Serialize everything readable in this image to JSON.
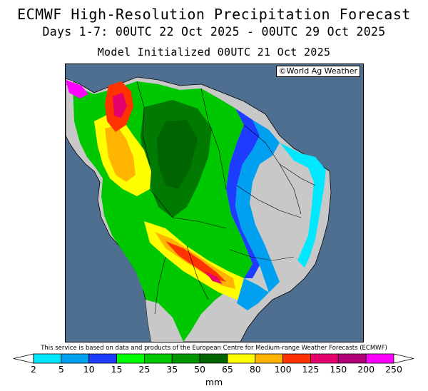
{
  "header": {
    "title": "ECMWF High-Resolution Precipitation Forecast",
    "period": "Days 1-7: 00UTC 22 Oct 2025 - 00UTC 29 Oct 2025",
    "init": "Model Initialized 00UTC 21 Oct 2025"
  },
  "map": {
    "credit": "©World Ag Weather",
    "ocean_color": "#4f6f91",
    "land_dry_color": "#c8c8c8",
    "region": "South America"
  },
  "footer": {
    "disclaimer": "This service is based on data and products of the European Centre for Medium-range Weather Forecasts (ECMWF)"
  },
  "legend": {
    "unit": "mm",
    "ticks": [
      "2",
      "5",
      "10",
      "15",
      "25",
      "35",
      "50",
      "65",
      "80",
      "100",
      "125",
      "150",
      "200",
      "250"
    ],
    "colors": [
      "#00e8ff",
      "#00a0f0",
      "#1e3cff",
      "#00ff00",
      "#00c800",
      "#009600",
      "#006400",
      "#ffff00",
      "#ffb400",
      "#ff3200",
      "#e6006e",
      "#b40078",
      "#ff00ff",
      "#9b4bd2"
    ],
    "low_arrow_color": "#ffffff",
    "high_arrow_color": "#ffffff"
  }
}
